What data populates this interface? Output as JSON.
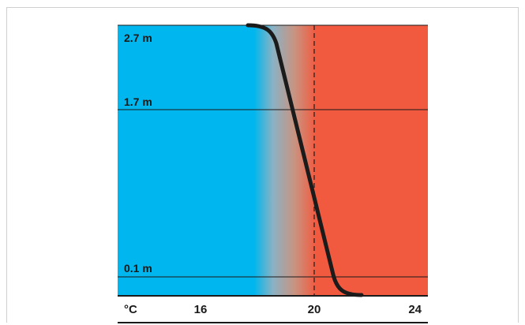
{
  "diagram": {
    "height_markers": [
      {
        "label": "2.7 m",
        "value_m": 2.7
      },
      {
        "label": "1.7 m",
        "value_m": 1.7
      },
      {
        "label": "0.1 m",
        "value_m": 0.1
      }
    ],
    "x_axis": {
      "unit_label": "°C",
      "ticks": [
        {
          "label": "16",
          "value": 16
        },
        {
          "label": "20",
          "value": 20
        },
        {
          "label": "24",
          "value": 24
        }
      ]
    },
    "reference_temperature_c": 20,
    "colors": {
      "cold": "#00b6ee",
      "warm": "#f25a3f",
      "curve": "#1b1b1b",
      "lines": "#1b1b1b"
    }
  }
}
